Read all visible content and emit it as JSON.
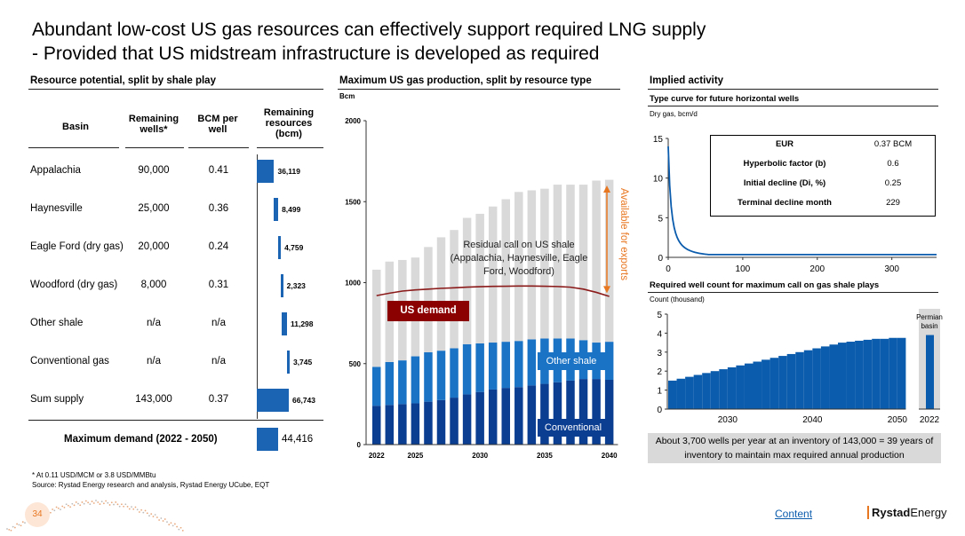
{
  "title": {
    "line1": "Abundant low-cost US gas resources can effectively support required LNG supply",
    "line2": "- Provided that US midstream infrastructure is developed as required"
  },
  "left_panel": {
    "heading": "Resource potential, split by shale play",
    "columns": {
      "basin": "Basin",
      "wells": "Remaining wells*",
      "bcm": "BCM per well",
      "resources": "Remaining resources (bcm)"
    },
    "rows": [
      {
        "basin": "Appalachia",
        "wells": "90,000",
        "bcm": "0.41",
        "value": 36119,
        "label": "36,119",
        "offset": 0
      },
      {
        "basin": "Haynesville",
        "wells": "25,000",
        "bcm": "0.36",
        "value": 8499,
        "label": "8,499",
        "offset": 36119
      },
      {
        "basin": "Eagle Ford (dry gas)",
        "wells": "20,000",
        "bcm": "0.24",
        "value": 4759,
        "label": "4,759",
        "offset": 44618
      },
      {
        "basin": "Woodford (dry gas)",
        "wells": "8,000",
        "bcm": "0.31",
        "value": 2323,
        "label": "2,323",
        "offset": 49377
      },
      {
        "basin": "Other shale",
        "wells": "n/a",
        "bcm": "n/a",
        "value": 11298,
        "label": "11,298",
        "offset": 51700
      },
      {
        "basin": "Conventional gas",
        "wells": "n/a",
        "bcm": "n/a",
        "value": 3745,
        "label": "3,745",
        "offset": 62998
      },
      {
        "basin": "Sum supply",
        "wells": "143,000",
        "bcm": "0.37",
        "value": 66743,
        "label": "66,743",
        "offset": 0
      }
    ],
    "max_demand": {
      "label": "Maximum demand (2022 - 2050)",
      "value": 44416,
      "value_label": "44,416"
    },
    "footnote1": "* At 0.11 USD/MCM or 3.8 USD/MMBtu",
    "footnote2": "Source: Rystad Energy research and analysis, Rystad Energy UCube, EQT"
  },
  "chart_data": [
    {
      "type": "bar",
      "title": "Maximum US gas production, split by resource type",
      "ylabel": "Bcm",
      "ylim": [
        0,
        2000
      ],
      "yticks": [
        "0",
        "500",
        "1000",
        "1500",
        "2000"
      ],
      "xticks": [
        {
          "year": 2022,
          "label": "2022"
        },
        {
          "year": 2025,
          "label": "2025"
        },
        {
          "year": 2030,
          "label": "2030"
        },
        {
          "year": 2035,
          "label": "2035"
        },
        {
          "year": 2040,
          "label": "2040"
        }
      ],
      "categories": [
        2022,
        2023,
        2024,
        2025,
        2026,
        2027,
        2028,
        2029,
        2030,
        2031,
        2032,
        2033,
        2034,
        2035,
        2036,
        2037,
        2038,
        2039,
        2040
      ],
      "series": [
        {
          "name": "Conventional",
          "color": "#0b3d91",
          "values": [
            240,
            245,
            250,
            255,
            265,
            275,
            290,
            310,
            325,
            340,
            350,
            355,
            365,
            375,
            385,
            395,
            405,
            405,
            400
          ]
        },
        {
          "name": "Other shale",
          "color": "#1a73c5",
          "values": [
            240,
            265,
            270,
            290,
            305,
            305,
            305,
            310,
            300,
            290,
            285,
            285,
            285,
            280,
            270,
            260,
            240,
            225,
            235
          ]
        },
        {
          "name": "Residual call on US shale",
          "color": "#d9d9d9",
          "values": [
            600,
            620,
            620,
            610,
            650,
            700,
            730,
            780,
            800,
            840,
            880,
            920,
            920,
            925,
            950,
            950,
            960,
            1000,
            1000
          ]
        }
      ],
      "us_demand": [
        920,
        935,
        948,
        955,
        960,
        965,
        968,
        972,
        975,
        977,
        978,
        979,
        979,
        978,
        976,
        972,
        960,
        940,
        915
      ],
      "labels": {
        "residual": "Residual call on US shale (Appalachia, Haynesville, Eagle Ford, Woodford)",
        "us_demand": "US demand",
        "other_shale": "Other shale",
        "conventional": "Conventional",
        "exports": "Available for exports"
      },
      "colors": {
        "demand_line": "#8b1a1a",
        "demand_box": "#8b0000",
        "arrow": "#e87722"
      }
    },
    {
      "type": "line",
      "title": "Type curve for future horizontal wells",
      "ylabel": "Dry gas, bcm/d",
      "xlim": [
        0,
        360
      ],
      "ylim": [
        0,
        15
      ],
      "xticks": [
        "0",
        "100",
        "200",
        "300"
      ],
      "yticks": [
        "0",
        "5",
        "10",
        "15"
      ],
      "params": {
        "qi": 14,
        "b": 0.6,
        "di": 0.25
      }
    },
    {
      "type": "bar",
      "title": "Required well count for maximum call on gas shale plays",
      "ylabel": "Count (thousand)",
      "ylim": [
        0,
        5
      ],
      "yticks": [
        "0",
        "1",
        "2",
        "3",
        "4",
        "5"
      ],
      "xticks": [
        {
          "index": 7,
          "label": "2030"
        },
        {
          "index": 17,
          "label": "2040"
        },
        {
          "index": 27,
          "label": "2050"
        }
      ],
      "values": [
        1.5,
        1.6,
        1.7,
        1.8,
        1.9,
        2.0,
        2.1,
        2.2,
        2.3,
        2.4,
        2.5,
        2.6,
        2.7,
        2.8,
        2.9,
        3.0,
        3.1,
        3.2,
        3.3,
        3.4,
        3.5,
        3.55,
        3.6,
        3.65,
        3.7,
        3.7,
        3.75,
        3.75
      ],
      "permian": {
        "label": "Permian basin",
        "value": 3.9,
        "tick": "2022"
      },
      "colors": {
        "bar": "#0b5cad",
        "highlight": "#d9d9d9"
      }
    }
  ],
  "right_panel": {
    "heading": "Implied activity",
    "eur_table": [
      {
        "k": "EUR",
        "v": "0.37 BCM"
      },
      {
        "k": "Hyperbolic factor (b)",
        "v": "0.6"
      },
      {
        "k": "Initial decline (Di, %)",
        "v": "0.25"
      },
      {
        "k": "Terminal decline month",
        "v": "229"
      }
    ],
    "callout": "About 3,700 wells per year at an inventory of 143,000 = 39 years of inventory to maintain max required annual production"
  },
  "footer": {
    "page": "34",
    "link": "Content",
    "brand_a": "Rystad",
    "brand_b": "Energy"
  },
  "colors": {
    "brand_blue": "#0b5cad",
    "bar_blue": "#1565c0",
    "orange": "#e87722"
  }
}
